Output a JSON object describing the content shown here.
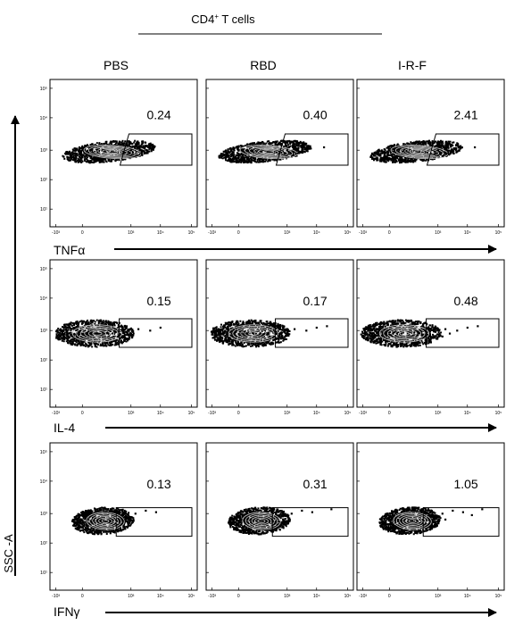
{
  "chart_data": {
    "type": "scatter",
    "title_main": "CD4",
    "title_sup": "+",
    "title_rest": " T cells",
    "columns": [
      "PBS",
      "RBD",
      "I-R-F"
    ],
    "ylabel": "SSC -A",
    "y_ticks": [
      "10⁵",
      "10⁴",
      "10³",
      "10²",
      "10¹"
    ],
    "x_ticks": [
      "-10³",
      "0",
      "10³",
      "10⁴",
      "10⁵"
    ],
    "rows": [
      {
        "marker": "TNFα",
        "percentages": [
          "0.24",
          "0.40",
          "2.41"
        ]
      },
      {
        "marker": "IL-4",
        "percentages": [
          "0.15",
          "0.17",
          "0.48"
        ]
      },
      {
        "marker": "IFNγ",
        "percentages": [
          "0.13",
          "0.31",
          "1.05"
        ]
      }
    ]
  }
}
